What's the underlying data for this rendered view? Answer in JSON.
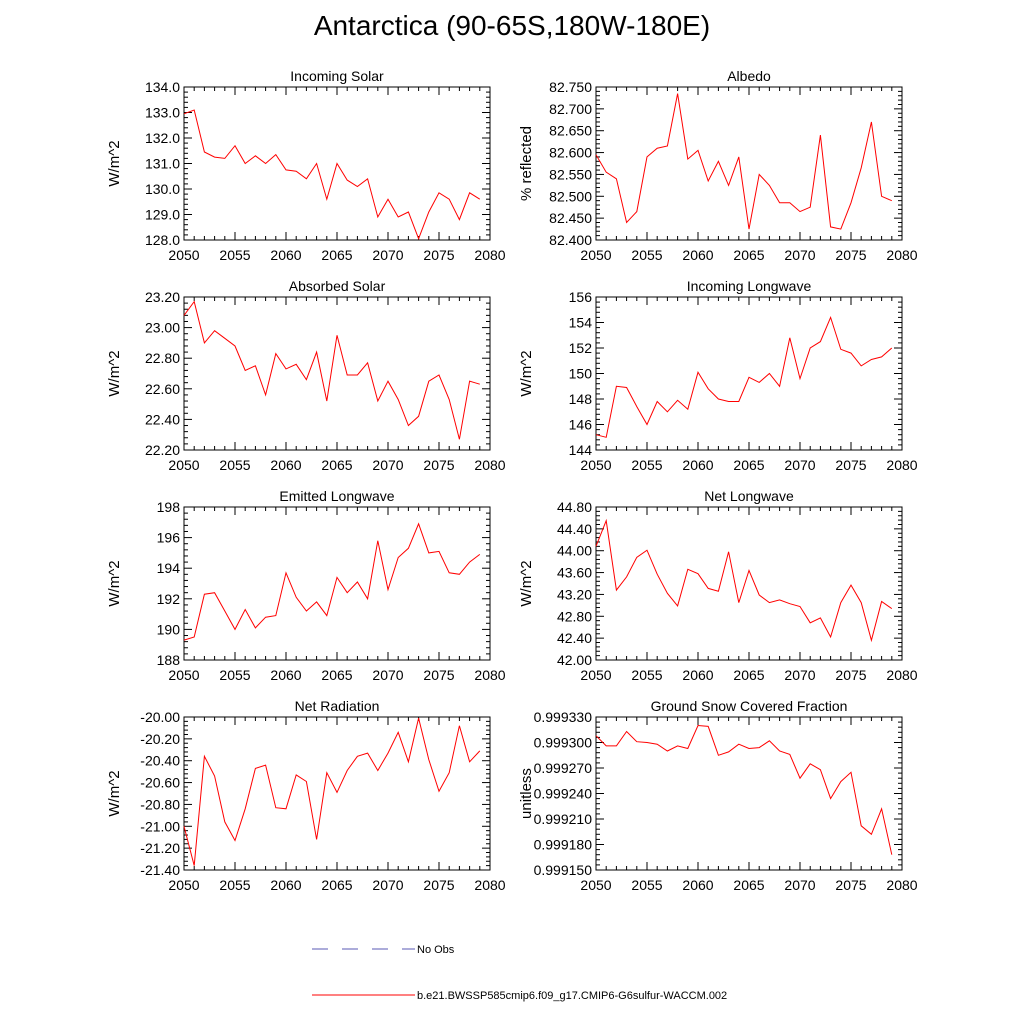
{
  "figure_title": "Antarctica (90-65S,180W-180E)",
  "legend": {
    "obs_label": "No Obs",
    "obs_color": "#5a5ab4",
    "model_label": "b.e21.BWSSP585cmip6.f09_g17.CMIP6-G6sulfur-WACCM.002",
    "model_color": "#ff0000"
  },
  "chart_data": [
    {
      "type": "line",
      "title": "Incoming Solar",
      "ylabel": "W/m^2",
      "xlim": [
        2050,
        2080
      ],
      "xticks": [
        2050,
        2055,
        2060,
        2065,
        2070,
        2075,
        2080
      ],
      "ylim": [
        128.0,
        134.0
      ],
      "yticks": [
        "128.0",
        "129.0",
        "130.0",
        "131.0",
        "132.0",
        "133.0",
        "134.0"
      ],
      "x": [
        2050,
        2051,
        2052,
        2053,
        2054,
        2055,
        2056,
        2057,
        2058,
        2059,
        2060,
        2061,
        2062,
        2063,
        2064,
        2065,
        2066,
        2067,
        2068,
        2069,
        2070,
        2071,
        2072,
        2073,
        2074,
        2075,
        2076,
        2077,
        2078,
        2079
      ],
      "values": [
        132.95,
        133.1,
        131.45,
        131.25,
        131.2,
        131.7,
        131.0,
        131.3,
        131.0,
        131.35,
        130.75,
        130.7,
        130.4,
        131.0,
        129.6,
        131.0,
        130.35,
        130.1,
        130.4,
        128.9,
        129.6,
        128.9,
        129.1,
        128.05,
        129.1,
        129.85,
        129.6,
        128.8,
        129.85,
        129.6
      ]
    },
    {
      "type": "line",
      "title": "Albedo",
      "ylabel": "% reflected",
      "xlim": [
        2050,
        2080
      ],
      "xticks": [
        2050,
        2055,
        2060,
        2065,
        2070,
        2075,
        2080
      ],
      "ylim": [
        82.4,
        82.75
      ],
      "yticks": [
        "82.400",
        "82.450",
        "82.500",
        "82.550",
        "82.600",
        "82.650",
        "82.700",
        "82.750"
      ],
      "x": [
        2050,
        2051,
        2052,
        2053,
        2054,
        2055,
        2056,
        2057,
        2058,
        2059,
        2060,
        2061,
        2062,
        2063,
        2064,
        2065,
        2066,
        2067,
        2068,
        2069,
        2070,
        2071,
        2072,
        2073,
        2074,
        2075,
        2076,
        2077,
        2078,
        2079
      ],
      "values": [
        82.595,
        82.555,
        82.54,
        82.44,
        82.465,
        82.59,
        82.61,
        82.615,
        82.735,
        82.585,
        82.605,
        82.535,
        82.58,
        82.525,
        82.59,
        82.425,
        82.55,
        82.525,
        82.485,
        82.485,
        82.465,
        82.475,
        82.64,
        82.43,
        82.425,
        82.485,
        82.565,
        82.67,
        82.5,
        82.49
      ]
    },
    {
      "type": "line",
      "title": "Absorbed Solar",
      "ylabel": "W/m^2",
      "xlim": [
        2050,
        2080
      ],
      "xticks": [
        2050,
        2055,
        2060,
        2065,
        2070,
        2075,
        2080
      ],
      "ylim": [
        22.2,
        23.2
      ],
      "yticks": [
        "22.20",
        "22.40",
        "22.60",
        "22.80",
        "23.00",
        "23.20"
      ],
      "x": [
        2050,
        2051,
        2052,
        2053,
        2054,
        2055,
        2056,
        2057,
        2058,
        2059,
        2060,
        2061,
        2062,
        2063,
        2064,
        2065,
        2066,
        2067,
        2068,
        2069,
        2070,
        2071,
        2072,
        2073,
        2074,
        2075,
        2076,
        2077,
        2078,
        2079
      ],
      "values": [
        23.08,
        23.17,
        22.9,
        22.98,
        22.93,
        22.88,
        22.72,
        22.75,
        22.56,
        22.83,
        22.73,
        22.76,
        22.66,
        22.84,
        22.52,
        22.95,
        22.69,
        22.69,
        22.77,
        22.52,
        22.65,
        22.53,
        22.36,
        22.42,
        22.65,
        22.69,
        22.53,
        22.27,
        22.65,
        22.63
      ]
    },
    {
      "type": "line",
      "title": "Incoming Longwave",
      "ylabel": "W/m^2",
      "xlim": [
        2050,
        2080
      ],
      "xticks": [
        2050,
        2055,
        2060,
        2065,
        2070,
        2075,
        2080
      ],
      "ylim": [
        144,
        156
      ],
      "yticks": [
        "144",
        "146",
        "148",
        "150",
        "152",
        "154",
        "156"
      ],
      "x": [
        2050,
        2051,
        2052,
        2053,
        2054,
        2055,
        2056,
        2057,
        2058,
        2059,
        2060,
        2061,
        2062,
        2063,
        2064,
        2065,
        2066,
        2067,
        2068,
        2069,
        2070,
        2071,
        2072,
        2073,
        2074,
        2075,
        2076,
        2077,
        2078,
        2079
      ],
      "values": [
        145.2,
        145.0,
        149.0,
        148.9,
        147.4,
        146.0,
        147.8,
        147.0,
        147.9,
        147.2,
        150.1,
        148.8,
        148.0,
        147.8,
        147.8,
        149.7,
        149.3,
        150.0,
        149.0,
        152.8,
        149.6,
        152.0,
        152.5,
        154.4,
        151.9,
        151.6,
        150.6,
        151.1,
        151.3,
        152.0
      ]
    },
    {
      "type": "line",
      "title": "Emitted Longwave",
      "ylabel": "W/m^2",
      "xlim": [
        2050,
        2080
      ],
      "xticks": [
        2050,
        2055,
        2060,
        2065,
        2070,
        2075,
        2080
      ],
      "ylim": [
        188,
        198
      ],
      "yticks": [
        "188",
        "190",
        "192",
        "194",
        "196",
        "198"
      ],
      "x": [
        2050,
        2051,
        2052,
        2053,
        2054,
        2055,
        2056,
        2057,
        2058,
        2059,
        2060,
        2061,
        2062,
        2063,
        2064,
        2065,
        2066,
        2067,
        2068,
        2069,
        2070,
        2071,
        2072,
        2073,
        2074,
        2075,
        2076,
        2077,
        2078,
        2079
      ],
      "values": [
        189.3,
        189.5,
        192.3,
        192.4,
        191.2,
        190.0,
        191.3,
        190.1,
        190.8,
        190.9,
        193.7,
        192.1,
        191.2,
        191.8,
        190.9,
        193.4,
        192.4,
        193.1,
        192.0,
        195.8,
        192.6,
        194.7,
        195.3,
        196.9,
        195.0,
        195.1,
        193.7,
        193.6,
        194.4,
        194.9
      ]
    },
    {
      "type": "line",
      "title": "Net Longwave",
      "ylabel": "W/m^2",
      "xlim": [
        2050,
        2080
      ],
      "xticks": [
        2050,
        2055,
        2060,
        2065,
        2070,
        2075,
        2080
      ],
      "ylim": [
        42.0,
        44.8
      ],
      "yticks": [
        "42.00",
        "42.40",
        "42.80",
        "43.20",
        "43.60",
        "44.00",
        "44.40",
        "44.80"
      ],
      "x": [
        2050,
        2051,
        2052,
        2053,
        2054,
        2055,
        2056,
        2057,
        2058,
        2059,
        2060,
        2061,
        2062,
        2063,
        2064,
        2065,
        2066,
        2067,
        2068,
        2069,
        2070,
        2071,
        2072,
        2073,
        2074,
        2075,
        2076,
        2077,
        2078,
        2079
      ],
      "values": [
        44.08,
        44.55,
        43.28,
        43.52,
        43.88,
        44.01,
        43.57,
        43.22,
        42.99,
        43.66,
        43.58,
        43.31,
        43.26,
        43.98,
        43.05,
        43.64,
        43.19,
        43.05,
        43.1,
        43.03,
        42.98,
        42.68,
        42.77,
        42.42,
        43.05,
        43.37,
        43.05,
        42.36,
        43.07,
        42.94
      ]
    },
    {
      "type": "line",
      "title": "Net Radiation",
      "ylabel": "W/m^2",
      "xlim": [
        2050,
        2080
      ],
      "xticks": [
        2050,
        2055,
        2060,
        2065,
        2070,
        2075,
        2080
      ],
      "ylim": [
        -21.4,
        -20.0
      ],
      "yticks": [
        "-21.40",
        "-21.20",
        "-21.00",
        "-20.80",
        "-20.60",
        "-20.40",
        "-20.20",
        "-20.00"
      ],
      "x": [
        2050,
        2051,
        2052,
        2053,
        2054,
        2055,
        2056,
        2057,
        2058,
        2059,
        2060,
        2061,
        2062,
        2063,
        2064,
        2065,
        2066,
        2067,
        2068,
        2069,
        2070,
        2071,
        2072,
        2073,
        2074,
        2075,
        2076,
        2077,
        2078,
        2079
      ],
      "values": [
        -21.0,
        -21.36,
        -20.36,
        -20.54,
        -20.96,
        -21.13,
        -20.84,
        -20.47,
        -20.44,
        -20.83,
        -20.84,
        -20.53,
        -20.59,
        -21.12,
        -20.51,
        -20.69,
        -20.49,
        -20.36,
        -20.33,
        -20.49,
        -20.33,
        -20.14,
        -20.41,
        -20.01,
        -20.39,
        -20.68,
        -20.51,
        -20.08,
        -20.41,
        -20.31
      ]
    },
    {
      "type": "line",
      "title": "Ground Snow Covered Fraction",
      "ylabel": "unitless",
      "xlim": [
        2050,
        2080
      ],
      "xticks": [
        2050,
        2055,
        2060,
        2065,
        2070,
        2075,
        2080
      ],
      "ylim": [
        0.99915,
        0.99933
      ],
      "yticks": [
        "0.999150",
        "0.999180",
        "0.999210",
        "0.999240",
        "0.999270",
        "0.999300",
        "0.999330"
      ],
      "x": [
        2050,
        2051,
        2052,
        2053,
        2054,
        2055,
        2056,
        2057,
        2058,
        2059,
        2060,
        2061,
        2062,
        2063,
        2064,
        2065,
        2066,
        2067,
        2068,
        2069,
        2070,
        2071,
        2072,
        2073,
        2074,
        2075,
        2076,
        2077,
        2078,
        2079
      ],
      "values": [
        0.999308,
        0.999296,
        0.999296,
        0.999313,
        0.999301,
        0.9993,
        0.999298,
        0.99929,
        0.999296,
        0.999293,
        0.99932,
        0.999319,
        0.999285,
        0.999289,
        0.999298,
        0.999293,
        0.999294,
        0.999302,
        0.99929,
        0.999286,
        0.999258,
        0.999275,
        0.999268,
        0.999234,
        0.999254,
        0.999265,
        0.999202,
        0.999192,
        0.999222,
        0.999168
      ]
    }
  ]
}
